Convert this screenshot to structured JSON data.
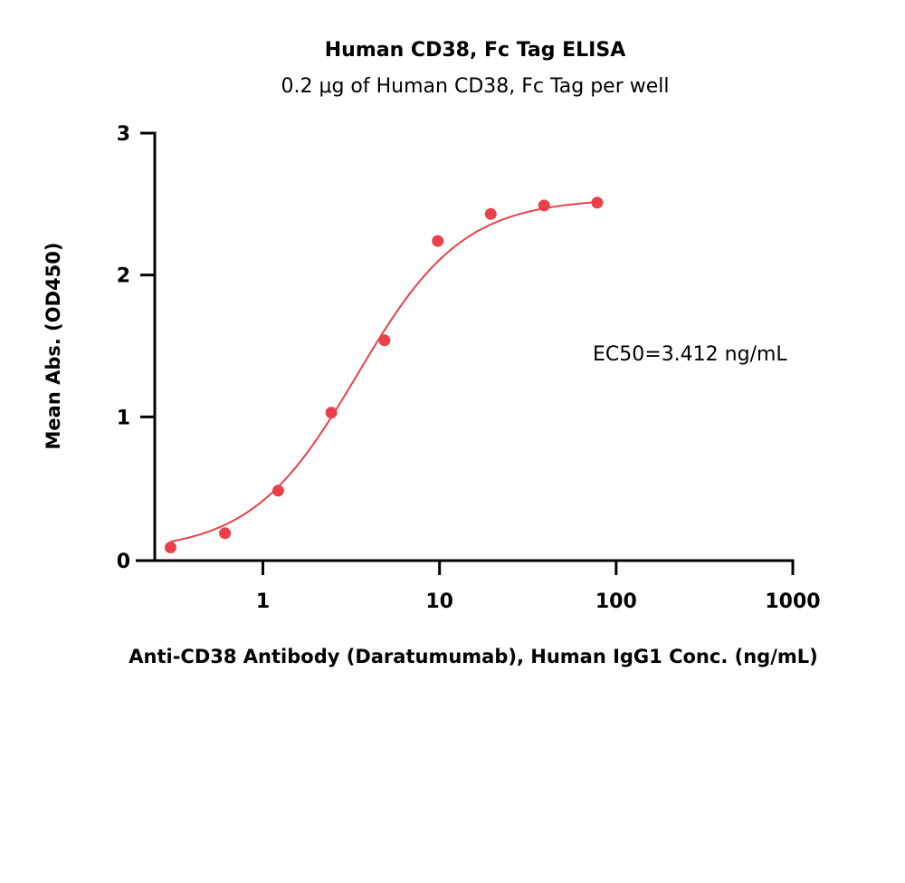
{
  "chart_data": {
    "type": "scatter",
    "title": "Human CD38, Fc Tag ELISA",
    "subtitle": "0.2 μg of Human CD38, Fc Tag per well",
    "xlabel": "Anti-CD38 Antibody (Daratumumab), Human IgG1 Conc. (ng/mL)",
    "ylabel": "Mean Abs. (OD450)",
    "x_scale": "log",
    "xlim": [
      0.25,
      1000
    ],
    "ylim": [
      0,
      3
    ],
    "x_ticks": [
      1,
      10,
      100,
      1000
    ],
    "x_tick_labels": [
      "1",
      "10",
      "100",
      "1000"
    ],
    "y_ticks": [
      0,
      1,
      2,
      3
    ],
    "y_tick_labels": [
      "0",
      "1",
      "2",
      "3"
    ],
    "grid": false,
    "annotation": "EC50=3.412 ng/mL",
    "series": [
      {
        "x": [
          0.3,
          0.61,
          1.22,
          2.44,
          4.88,
          9.77,
          19.5,
          39.1,
          78.1
        ],
        "y": [
          0.08,
          0.18,
          0.48,
          1.03,
          1.54,
          2.24,
          2.43,
          2.49,
          2.51
        ],
        "color": "#e8414a",
        "fit": {
          "model": "4PL",
          "bottom": 0.05,
          "top": 2.54,
          "ec50": 3.412,
          "hill": 1.45,
          "x_range": [
            0.3,
            78.1
          ]
        }
      }
    ]
  }
}
